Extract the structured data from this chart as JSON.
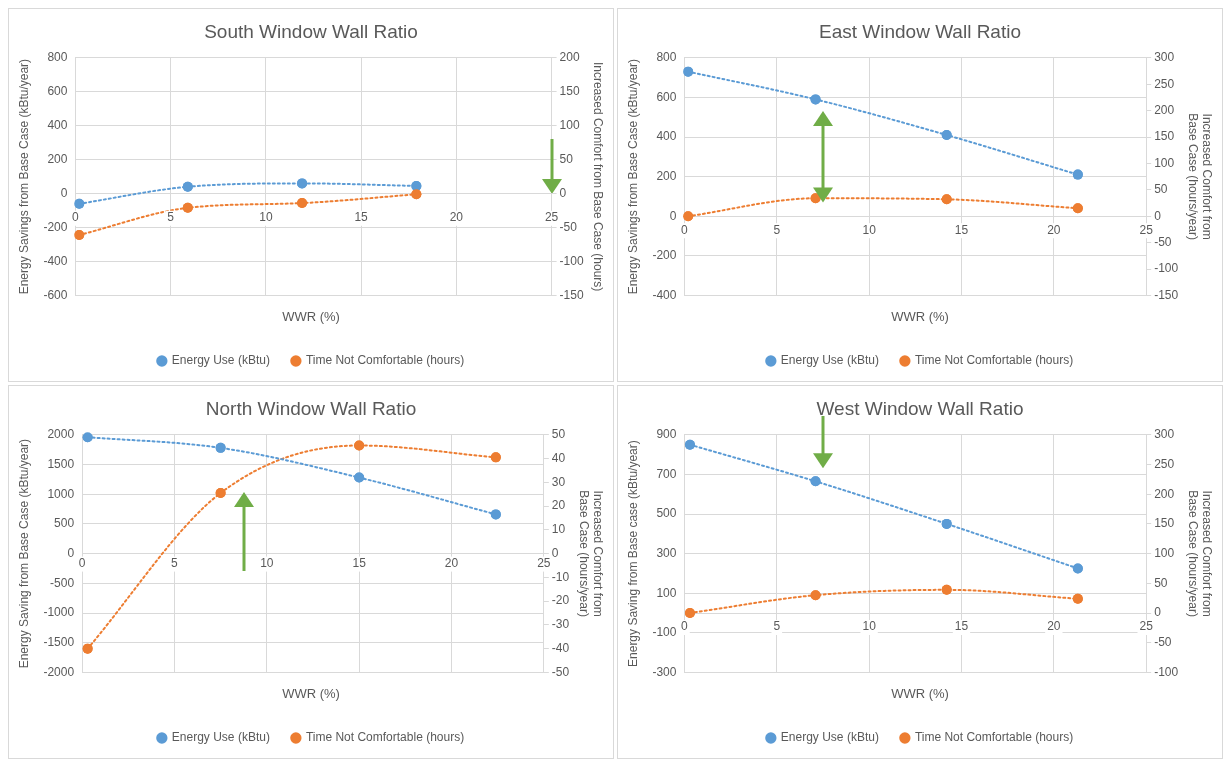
{
  "chart_data": [
    {
      "type": "line",
      "title": "South Window Wall Ratio",
      "xlabel": "WWR (%)",
      "ylabel": "Energy Savings from Base Case (kBtu/year)",
      "y2label": "Increased Comfort from Base Case (hours)",
      "xlim": [
        0,
        25
      ],
      "xticks": [
        0,
        5,
        10,
        15,
        20,
        25
      ],
      "ylim": [
        -600,
        800
      ],
      "yticks": [
        -600,
        -400,
        -200,
        0,
        200,
        400,
        600,
        800
      ],
      "y2lim": [
        -150,
        200
      ],
      "y2ticks": [
        -150,
        -100,
        -50,
        0,
        50,
        100,
        150,
        200
      ],
      "grid": true,
      "legend": "bottom",
      "marker": "circle",
      "line_style": "dotted",
      "series": [
        {
          "name": "Energy Use (kBtu)",
          "color": "#5b9bd5",
          "x": [
            0.2,
            5.9,
            11.9,
            17.9
          ],
          "values": [
            -60,
            40,
            60,
            45
          ]
        },
        {
          "name": "Time Not Comfortable (hours)",
          "color": "#ed7d31",
          "axis": "y2",
          "x": [
            0.2,
            5.9,
            11.9,
            17.9
          ],
          "values": [
            -61,
            -21,
            -14,
            -1
          ]
        }
      ]
    },
    {
      "type": "line",
      "title": "East Window Wall Ratio",
      "xlabel": "WWR (%)",
      "ylabel": "Energy Savings from Base Case (kBtu/year)",
      "y2label": "Increased Comfort from Base Case (hours/year)",
      "xlim": [
        0,
        25
      ],
      "xticks": [
        0,
        5,
        10,
        15,
        20,
        25
      ],
      "ylim": [
        -400,
        800
      ],
      "yticks": [
        -400,
        -200,
        0,
        200,
        400,
        600,
        800
      ],
      "y2lim": [
        -150,
        300
      ],
      "y2ticks": [
        -150,
        -100,
        -50,
        0,
        50,
        100,
        150,
        200,
        250,
        300
      ],
      "grid": true,
      "legend": "bottom",
      "marker": "circle",
      "line_style": "dotted",
      "series": [
        {
          "name": "Energy Use (kBtu)",
          "color": "#5b9bd5",
          "x": [
            0.2,
            7.1,
            14.2,
            21.3
          ],
          "values": [
            730,
            590,
            410,
            210
          ]
        },
        {
          "name": "Time Not Comfortable (hours)",
          "color": "#ed7d31",
          "axis": "y2",
          "x": [
            0.2,
            7.1,
            14.2,
            21.3
          ],
          "values": [
            0,
            34,
            32,
            15
          ]
        }
      ]
    },
    {
      "type": "line",
      "title": "North Window Wall Ratio",
      "xlabel": "WWR (%)",
      "ylabel": "Energy Saving from Base Case (kBtu/year)",
      "y2label": "Increased Comfort from Base Case (hours/year)",
      "xlim": [
        0,
        25
      ],
      "xticks": [
        0,
        5,
        10,
        15,
        20,
        25
      ],
      "ylim": [
        -2000,
        2000
      ],
      "yticks": [
        -2000,
        -1500,
        -1000,
        -500,
        0,
        500,
        1000,
        1500,
        2000
      ],
      "y2lim": [
        -50,
        50
      ],
      "y2ticks": [
        -50,
        -40,
        -30,
        -20,
        -10,
        0,
        10,
        20,
        30,
        40,
        50
      ],
      "grid": true,
      "legend": "bottom",
      "marker": "circle",
      "line_style": "dotted",
      "series": [
        {
          "name": "Energy Use (kBtu)",
          "color": "#5b9bd5",
          "x": [
            0.3,
            7.5,
            15,
            22.4
          ],
          "values": [
            1960,
            1780,
            1280,
            660
          ]
        },
        {
          "name": "Time Not Comfortable (hours)",
          "color": "#ed7d31",
          "axis": "y2",
          "x": [
            0.3,
            7.5,
            15,
            22.4
          ],
          "values": [
            -40,
            25.5,
            45.5,
            40.5
          ]
        }
      ]
    },
    {
      "type": "line",
      "title": "West Window Wall Ratio",
      "xlabel": "WWR (%)",
      "ylabel": "Energy Saving from Base case (kBtu/year)",
      "y2label": "Increased Comfort from Base Case (hours/year)",
      "xlim": [
        0,
        25
      ],
      "xticks": [
        0,
        5,
        10,
        15,
        20,
        25
      ],
      "ylim": [
        -300,
        900
      ],
      "yticks": [
        -300,
        -100,
        100,
        300,
        500,
        700,
        900
      ],
      "y2lim": [
        -100,
        300
      ],
      "y2ticks": [
        -100,
        -50,
        0,
        50,
        100,
        150,
        200,
        250,
        300
      ],
      "grid": true,
      "legend": "bottom",
      "marker": "circle",
      "line_style": "dotted",
      "series": [
        {
          "name": "Energy Use (kBtu)",
          "color": "#5b9bd5",
          "x": [
            0.3,
            7.1,
            14.2,
            21.3
          ],
          "values": [
            850,
            665,
            450,
            225
          ]
        },
        {
          "name": "Time Not Comfortable (hours)",
          "color": "#ed7d31",
          "axis": "y2",
          "x": [
            0.3,
            7.1,
            14.2,
            21.3
          ],
          "values": [
            0,
            30,
            39,
            24
          ]
        }
      ]
    }
  ]
}
